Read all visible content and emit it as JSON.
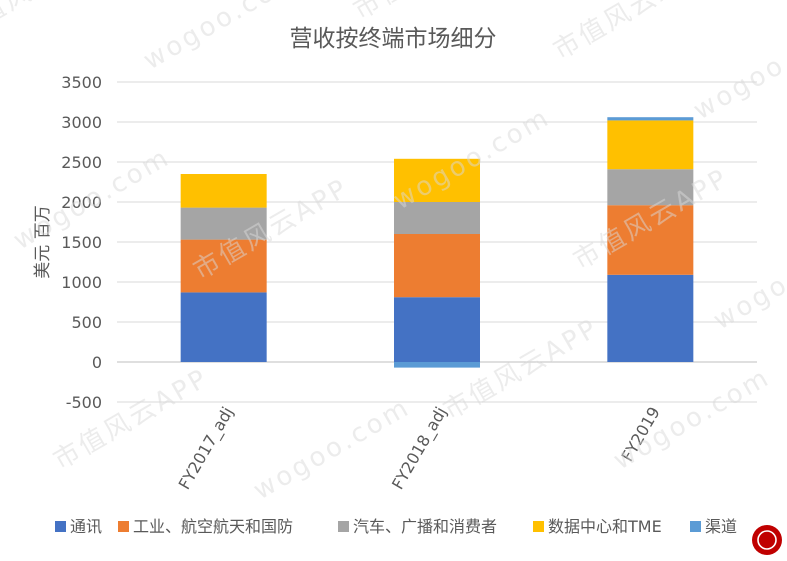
{
  "chart_data": {
    "type": "bar",
    "stacked": true,
    "title": "营收按终端市场细分",
    "ylabel": "美元 百万",
    "xlabel": "",
    "categories": [
      "FY2017_adj",
      "FY2018_adj",
      "FY2019"
    ],
    "ylim": [
      -500,
      3500
    ],
    "yticks": [
      -500,
      0,
      500,
      1000,
      1500,
      2000,
      2500,
      3000,
      3500
    ],
    "grid": true,
    "legend_position": "bottom",
    "series": [
      {
        "name": "通讯",
        "color": "#4472C4",
        "values": [
          870,
          810,
          1090
        ]
      },
      {
        "name": "工业、航空航天和国防",
        "color": "#ED7D31",
        "values": [
          660,
          790,
          870
        ]
      },
      {
        "name": "汽车、广播和消费者",
        "color": "#A5A5A5",
        "values": [
          400,
          400,
          450
        ]
      },
      {
        "name": "数据中心和TME",
        "color": "#FFC000",
        "values": [
          420,
          540,
          610
        ]
      },
      {
        "name": "渠道",
        "color": "#5B9BD5",
        "values": [
          0,
          -70,
          40
        ]
      }
    ]
  },
  "watermark": {
    "lines": [
      "市值风云APP",
      "wogoo.com"
    ]
  }
}
